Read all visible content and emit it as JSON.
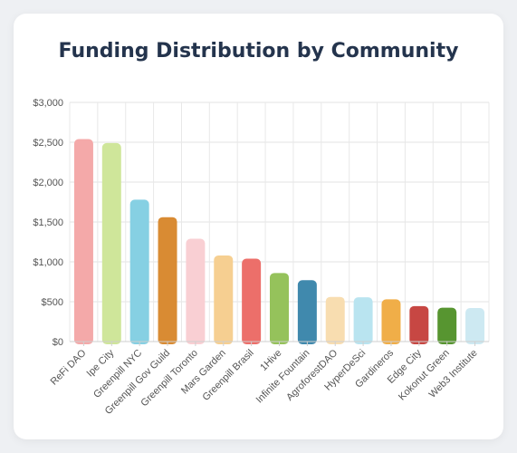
{
  "chart_data": {
    "type": "bar",
    "title": "Funding Distribution by Community",
    "xlabel": "",
    "ylabel": "",
    "ylim": [
      0,
      3000
    ],
    "yticks": [
      "$0",
      "$500",
      "$1,000",
      "$1,500",
      "$2,000",
      "$2,500",
      "$3,000"
    ],
    "ytick_values": [
      0,
      500,
      1000,
      1500,
      2000,
      2500,
      3000
    ],
    "grid": true,
    "legend": "none",
    "categories": [
      "ReFi DAO",
      "Ipe City",
      "Greenpill NYC",
      "Greenpill Gov Guild",
      "Greenpill Toronto",
      "Mars Garden",
      "Greenpill Brasil",
      "1Hive",
      "Infinite Fountain",
      "AgroforestDAO",
      "HyperDeSci",
      "Gardineros",
      "Edge City",
      "Kokonut Green",
      "Web3 Institute"
    ],
    "values": [
      2540,
      2490,
      1780,
      1560,
      1290,
      1080,
      1040,
      860,
      770,
      560,
      555,
      530,
      445,
      425,
      420
    ],
    "colors": [
      "#f4a9a9",
      "#cfe69a",
      "#86d0e3",
      "#d98b33",
      "#f9cfd3",
      "#f6cf91",
      "#ec6f6a",
      "#95c25b",
      "#4089ad",
      "#f8ddb0",
      "#b9e4f0",
      "#f0ae48",
      "#c74743",
      "#579530",
      "#cde9f2"
    ]
  }
}
